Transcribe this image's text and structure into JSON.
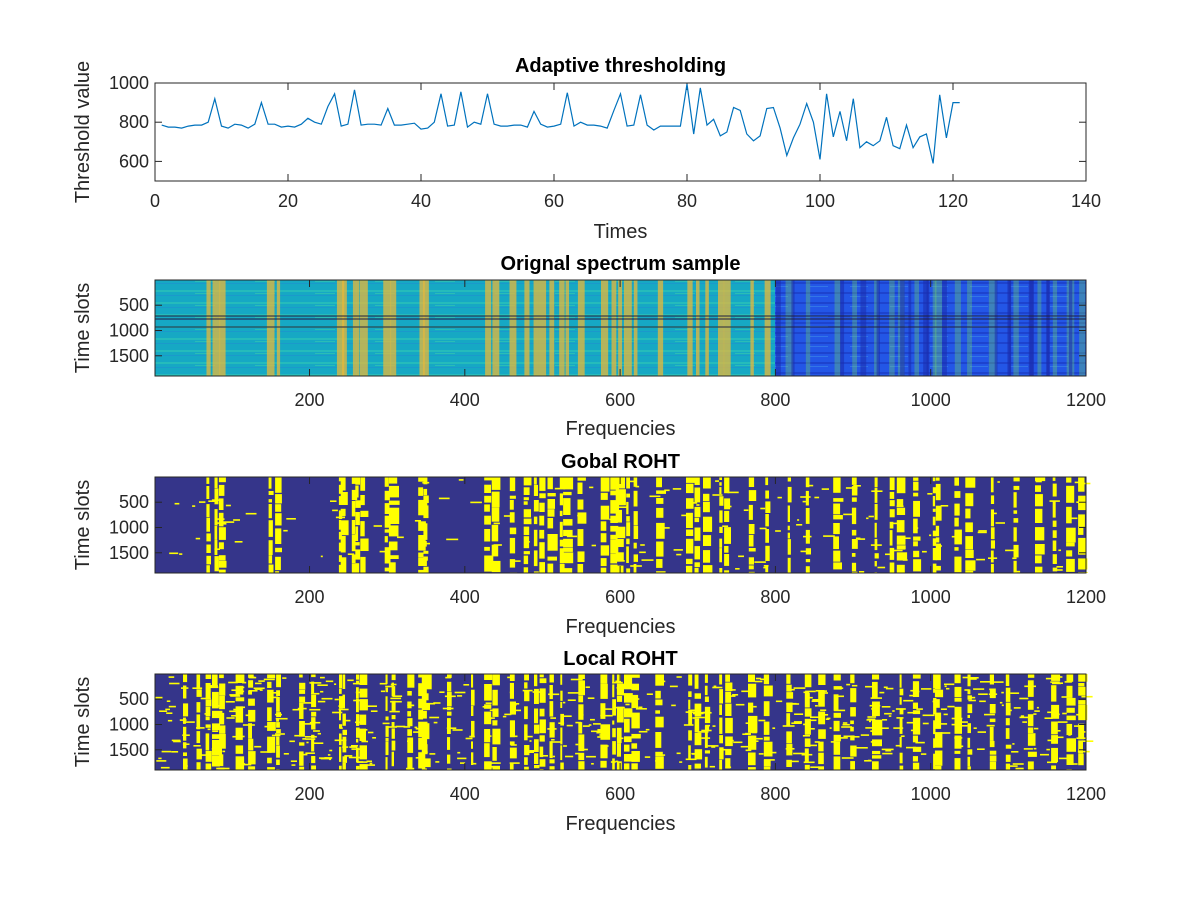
{
  "colors": {
    "line": "#0072BD",
    "axes": "#262626",
    "binary_background": "#35358A",
    "binary_foreground": "#FFFF00",
    "spectrum_low": "#1F4FE0",
    "spectrum_mid": "#18B5C8",
    "spectrum_high": "#E8B83A"
  },
  "chart_data": [
    {
      "type": "line",
      "title": "Adaptive thresholding",
      "xlabel": "Times",
      "ylabel": "Threshold value",
      "xlim": [
        0,
        140
      ],
      "ylim": [
        500,
        1000
      ],
      "xticks": [
        0,
        20,
        40,
        60,
        80,
        100,
        120,
        140
      ],
      "yticks": [
        600,
        800,
        1000
      ],
      "grid": false,
      "x": [
        1,
        2,
        3,
        4,
        5,
        6,
        7,
        8,
        9,
        10,
        11,
        12,
        13,
        14,
        15,
        16,
        17,
        18,
        19,
        20,
        21,
        22,
        23,
        24,
        25,
        26,
        27,
        28,
        29,
        30,
        31,
        32,
        33,
        34,
        35,
        36,
        37,
        38,
        39,
        40,
        41,
        42,
        43,
        44,
        45,
        46,
        47,
        48,
        49,
        50,
        51,
        52,
        53,
        54,
        55,
        56,
        57,
        58,
        59,
        60,
        61,
        62,
        63,
        64,
        65,
        66,
        67,
        68,
        69,
        70,
        71,
        72,
        73,
        74,
        75,
        76,
        77,
        78,
        79,
        80,
        81,
        82,
        83,
        84,
        85,
        86,
        87,
        88,
        89,
        90,
        91,
        92,
        93,
        94,
        95,
        96,
        97,
        98,
        99,
        100,
        101,
        102,
        103,
        104,
        105,
        106,
        107,
        108,
        109,
        110,
        111,
        112,
        113,
        114,
        115,
        116,
        117,
        118,
        119,
        120,
        121
      ],
      "y": [
        785,
        775,
        775,
        770,
        780,
        785,
        785,
        800,
        920,
        780,
        770,
        790,
        785,
        770,
        790,
        900,
        790,
        790,
        775,
        780,
        775,
        790,
        820,
        800,
        790,
        880,
        945,
        780,
        790,
        965,
        785,
        790,
        790,
        785,
        870,
        785,
        785,
        790,
        795,
        765,
        770,
        800,
        945,
        780,
        785,
        955,
        775,
        800,
        790,
        945,
        790,
        780,
        780,
        785,
        785,
        775,
        855,
        790,
        775,
        780,
        790,
        950,
        780,
        800,
        785,
        785,
        780,
        770,
        860,
        945,
        780,
        785,
        940,
        785,
        760,
        780,
        780,
        780,
        780,
        995,
        740,
        975,
        785,
        815,
        730,
        750,
        875,
        860,
        740,
        705,
        730,
        870,
        875,
        770,
        630,
        720,
        790,
        895,
        800,
        610,
        945,
        725,
        855,
        705,
        920,
        670,
        700,
        680,
        705,
        825,
        680,
        665,
        785,
        670,
        725,
        740,
        590,
        940,
        720,
        900,
        900
      ]
    },
    {
      "type": "heatmap",
      "title": "Orignal spectrum sample",
      "xlabel": "Frequencies",
      "ylabel": "Time slots",
      "xlim": [
        1,
        1200
      ],
      "ylim": [
        1,
        1900
      ],
      "xticks": [
        200,
        400,
        600,
        800,
        1000,
        1200
      ],
      "yticks": [
        500,
        1000,
        1500
      ],
      "y_reversed": true
    },
    {
      "type": "heatmap",
      "title": "Gobal ROHT",
      "xlabel": "Frequencies",
      "ylabel": "Time slots",
      "xlim": [
        1,
        1200
      ],
      "ylim": [
        1,
        1900
      ],
      "xticks": [
        200,
        400,
        600,
        800,
        1000,
        1200
      ],
      "yticks": [
        500,
        1000,
        1500
      ],
      "y_reversed": true,
      "occupied_columns": [
        70,
        80,
        88,
        150,
        160,
        240,
        245,
        258,
        262,
        270,
        300,
        308,
        345,
        350,
        430,
        440,
        462,
        480,
        492,
        500,
        512,
        525,
        532,
        550,
        580,
        592,
        600,
        610,
        620,
        652,
        690,
        700,
        712,
        730,
        738,
        770,
        790,
        818,
        842,
        880,
        902,
        930,
        950,
        962,
        982,
        1005,
        1010,
        1035,
        1050,
        1080,
        1110,
        1140,
        1160,
        1180,
        1195
      ]
    },
    {
      "type": "heatmap",
      "title": "Local ROHT",
      "xlabel": "Frequencies",
      "ylabel": "Time slots",
      "xlim": [
        1,
        1200
      ],
      "ylim": [
        1,
        1900
      ],
      "xticks": [
        200,
        400,
        600,
        800,
        1000,
        1200
      ],
      "yticks": [
        500,
        1000,
        1500
      ],
      "y_reversed": true,
      "occupied_columns": [
        40,
        58,
        70,
        80,
        88,
        110,
        125,
        150,
        160,
        190,
        205,
        240,
        245,
        262,
        270,
        300,
        308,
        330,
        345,
        350,
        380,
        410,
        430,
        440,
        462,
        480,
        492,
        500,
        512,
        525,
        550,
        580,
        592,
        600,
        610,
        620,
        650,
        690,
        700,
        712,
        730,
        740,
        770,
        790,
        818,
        842,
        860,
        880,
        900,
        930,
        962,
        982,
        1005,
        1010,
        1035,
        1050,
        1080,
        1100,
        1130,
        1160,
        1180,
        1195
      ]
    }
  ]
}
